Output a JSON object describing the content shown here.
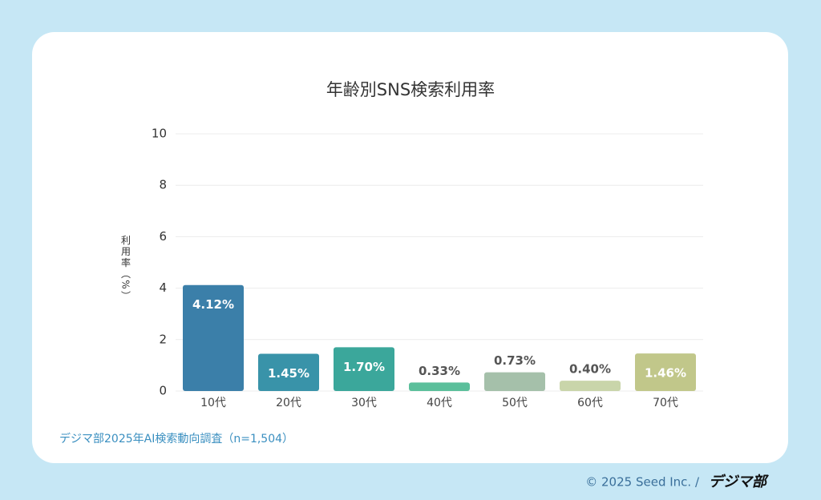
{
  "chart_data": {
    "type": "bar",
    "title": "年齢別SNS検索利用率",
    "y_label": "利用率（%）",
    "categories": [
      "10代",
      "20代",
      "30代",
      "40代",
      "50代",
      "60代",
      "70代"
    ],
    "values": [
      4.12,
      1.45,
      1.7,
      0.33,
      0.73,
      0.4,
      1.46
    ],
    "value_labels": [
      "4.12%",
      "1.45%",
      "1.70%",
      "0.33%",
      "0.73%",
      "0.40%",
      "1.46%"
    ],
    "colors": [
      "#3b7fa9",
      "#3993a9",
      "#3ba79b",
      "#5bbf9b",
      "#a5c0aa",
      "#c9d5aa",
      "#c1c78a"
    ],
    "ylim": [
      0,
      10
    ],
    "yticks": [
      0,
      2,
      4,
      6,
      8,
      10
    ],
    "grid": true,
    "source": "デジマ部2025年AI検索動向調査（n=1,504）"
  },
  "footer": {
    "copyright": "© 2025 Seed Inc. /",
    "logo": "デジマ部"
  }
}
